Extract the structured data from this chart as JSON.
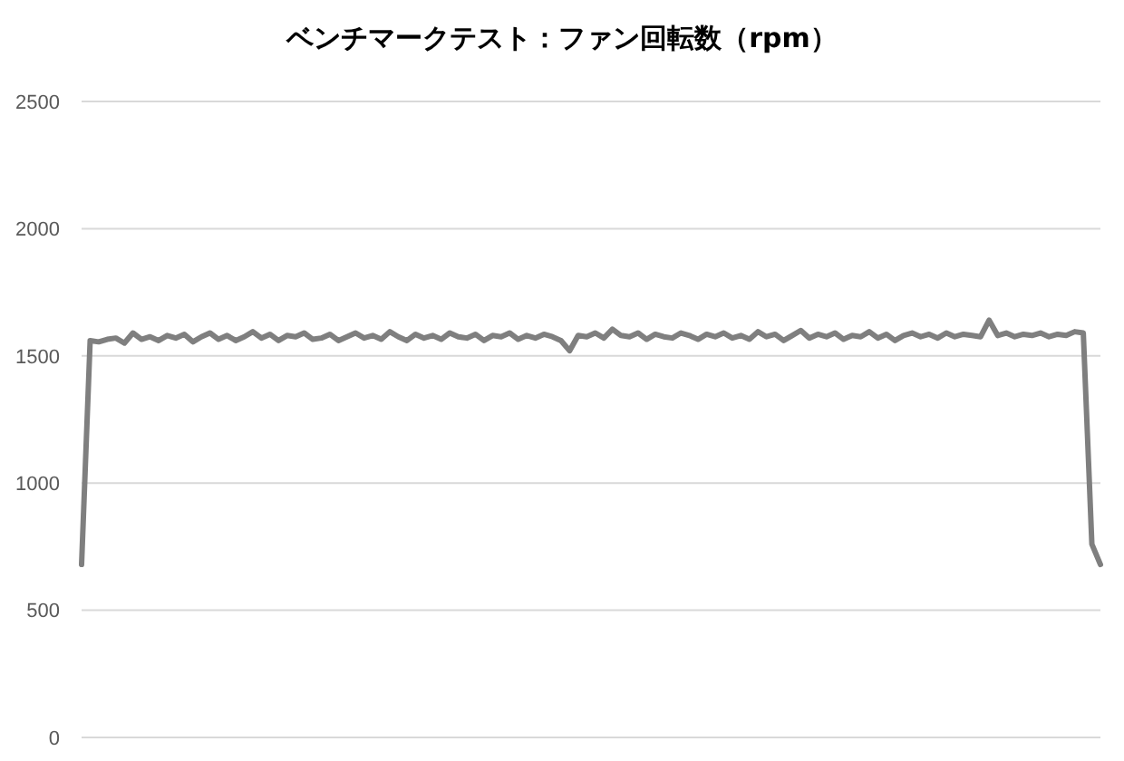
{
  "chart_data": {
    "type": "line",
    "title": "ベンチマークテスト：ファン回転数（rpm）",
    "categories": [
      null,
      null,
      null,
      null,
      null,
      null,
      null,
      null,
      null,
      null,
      null,
      null,
      null,
      null,
      null,
      null,
      null,
      null,
      null,
      null,
      null,
      null,
      null,
      null,
      null,
      null,
      null,
      null,
      null,
      null,
      null,
      null,
      null,
      null,
      null,
      null,
      null,
      null,
      null,
      null,
      null,
      null,
      null,
      null,
      null,
      null,
      null,
      null,
      null,
      null,
      null,
      null,
      null,
      null,
      null,
      null,
      null,
      null,
      null,
      null,
      null,
      null,
      null,
      null,
      null,
      null,
      null,
      null,
      null,
      null,
      null,
      null,
      null,
      null,
      null,
      null,
      null,
      null,
      null,
      null,
      null,
      null,
      null,
      null,
      null,
      null,
      null,
      null,
      null,
      null,
      null,
      null,
      null,
      null,
      null,
      null,
      null,
      null,
      null,
      null,
      null,
      null,
      null,
      null,
      null,
      null,
      null,
      null,
      null,
      null,
      null,
      null,
      null,
      null,
      null,
      null,
      null,
      null,
      null,
      null
    ],
    "series": [
      {
        "color": "#7f7f7f",
        "values": [
          680,
          1560,
          1555,
          1565,
          1570,
          1550,
          1590,
          1565,
          1575,
          1560,
          1580,
          1570,
          1585,
          1555,
          1575,
          1590,
          1565,
          1580,
          1560,
          1575,
          1595,
          1570,
          1585,
          1560,
          1580,
          1575,
          1590,
          1565,
          1570,
          1585,
          1560,
          1575,
          1590,
          1570,
          1580,
          1565,
          1595,
          1575,
          1560,
          1585,
          1570,
          1580,
          1565,
          1590,
          1575,
          1570,
          1585,
          1560,
          1580,
          1575,
          1590,
          1565,
          1580,
          1570,
          1585,
          1575,
          1560,
          1520,
          1580,
          1575,
          1590,
          1570,
          1605,
          1580,
          1575,
          1590,
          1565,
          1585,
          1575,
          1570,
          1590,
          1580,
          1565,
          1585,
          1575,
          1590,
          1570,
          1580,
          1565,
          1595,
          1575,
          1585,
          1560,
          1580,
          1600,
          1570,
          1585,
          1575,
          1590,
          1565,
          1580,
          1575,
          1595,
          1570,
          1585,
          1560,
          1580,
          1590,
          1575,
          1585,
          1570,
          1590,
          1575,
          1585,
          1580,
          1575,
          1640,
          1580,
          1590,
          1575,
          1585,
          1580,
          1590,
          1575,
          1585,
          1580,
          1595,
          1590,
          760,
          680
        ]
      }
    ],
    "ylim": [
      0,
      2500
    ],
    "yticks": [
      0,
      500,
      1000,
      1500,
      2000,
      2500
    ],
    "grid": "y",
    "marker": "none",
    "line_style": "solid",
    "tick_labels": "y"
  }
}
